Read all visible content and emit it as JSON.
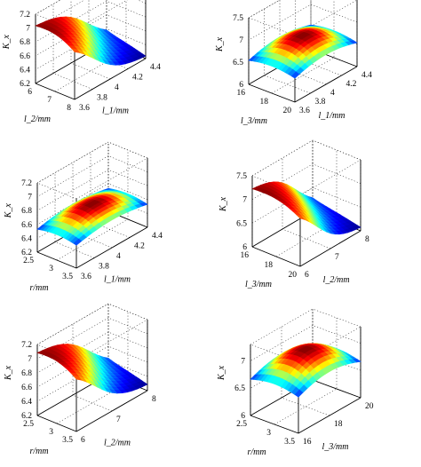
{
  "chart_data": [
    {
      "type": "surface",
      "zlabel": "K_x",
      "zticks": [
        "6.2",
        "6.4",
        "6.6",
        "6.8",
        "7",
        "7.2"
      ],
      "zlim": [
        6.2,
        7.2
      ],
      "xlabel": "l_2/mm",
      "xticks": [
        "6",
        "7",
        "8"
      ],
      "ylabel": "l_1/mm",
      "yticks": [
        "3.6",
        "3.8",
        "4",
        "4.2",
        "4.4"
      ],
      "surface": {
        "type": "sigmoid",
        "zmin": 6.22,
        "zmax": 7.05
      }
    },
    {
      "type": "surface",
      "zlabel": "K_x",
      "zticks": [
        "6",
        "6.5",
        "7",
        "7.5"
      ],
      "zlim": [
        6,
        7.5
      ],
      "xlabel": "l_3/mm",
      "xticks": [
        "16",
        "18",
        "20"
      ],
      "ylabel": "l_1/mm",
      "yticks": [
        "3.6",
        "3.8",
        "4",
        "4.2",
        "4.4"
      ],
      "surface": {
        "type": "dome",
        "zmin": 6.48,
        "zmax": 6.9
      }
    },
    {
      "type": "surface",
      "zlabel": "K_x",
      "zticks": [
        "6.2",
        "6.4",
        "6.6",
        "6.8",
        "7",
        "7.2"
      ],
      "zlim": [
        6.2,
        7.2
      ],
      "xlabel": "r/mm",
      "xticks": [
        "2.5",
        "3",
        "3.5"
      ],
      "ylabel": "l_1/mm",
      "yticks": [
        "3.6",
        "3.8",
        "4",
        "4.2",
        "4.4"
      ],
      "surface": {
        "type": "dome",
        "zmin": 6.5,
        "zmax": 6.72
      }
    },
    {
      "type": "surface",
      "zlabel": "K_x",
      "zticks": [
        "6",
        "6.5",
        "7",
        "7.5"
      ],
      "zlim": [
        6,
        7.5
      ],
      "xlabel": "l_3/mm",
      "xticks": [
        "16",
        "18",
        "20"
      ],
      "ylabel": "l_2/mm",
      "yticks": [
        "6",
        "7",
        "8"
      ],
      "surface": {
        "type": "sigmoid",
        "zmin": 6.05,
        "zmax": 7.25
      }
    },
    {
      "type": "surface",
      "zlabel": "K_x",
      "zticks": [
        "6.2",
        "6.4",
        "6.6",
        "6.8",
        "7",
        "7.2"
      ],
      "zlim": [
        6.2,
        7.2
      ],
      "xlabel": "r/mm",
      "xticks": [
        "2.5",
        "3",
        "3.5"
      ],
      "ylabel": "l_2/mm",
      "yticks": [
        "6",
        "7",
        "8"
      ],
      "surface": {
        "type": "sigmoid",
        "zmin": 6.27,
        "zmax": 7.1
      }
    },
    {
      "type": "surface",
      "zlabel": "K_x",
      "zticks": [
        "6",
        "6.5",
        "7"
      ],
      "zlim": [
        6,
        7.3
      ],
      "xlabel": "r/mm",
      "xticks": [
        "2.5",
        "3",
        "3.5"
      ],
      "ylabel": "l_3/mm",
      "yticks": [
        "16",
        "18",
        "20"
      ],
      "surface": {
        "type": "dome",
        "zmin": 6.6,
        "zmax": 7.05
      }
    }
  ]
}
